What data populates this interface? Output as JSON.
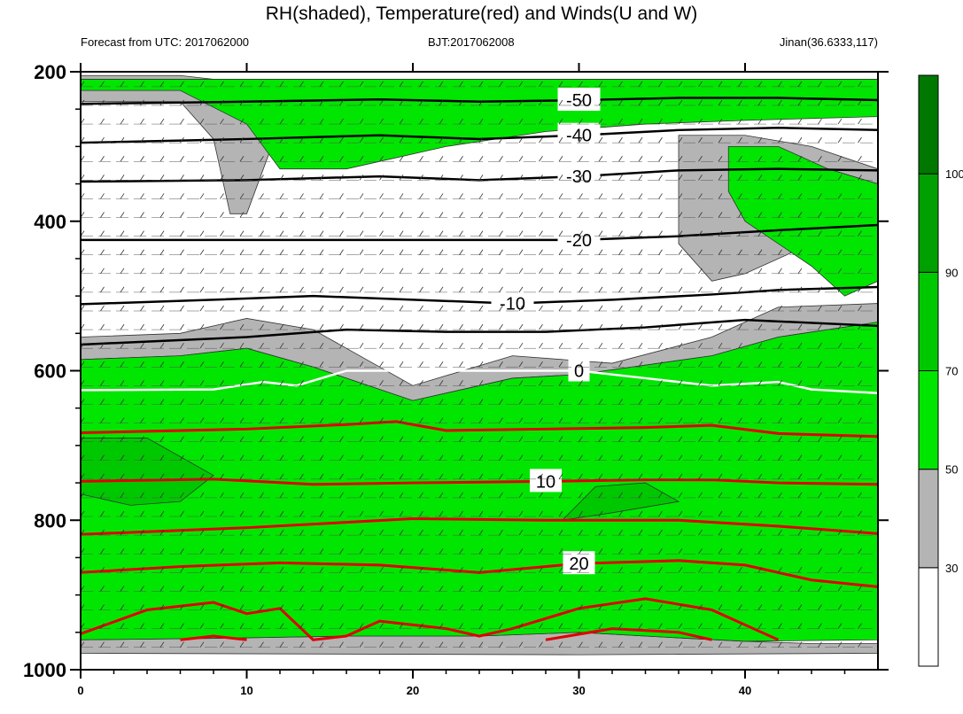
{
  "chart_data": {
    "type": "contour",
    "title": "RH(shaded), Temperature(red) and Winds(U and W)",
    "subtitle_left": "Forecast from UTC: 2017062000",
    "subtitle_center": "BJT:2017062008",
    "subtitle_right": "Jinan(36.6333,117)",
    "xlabel": "",
    "ylabel": "",
    "xlim": [
      0,
      48
    ],
    "ylim": [
      1000,
      200
    ],
    "x_ticks": [
      0,
      10,
      20,
      30,
      40
    ],
    "y_ticks": [
      200,
      400,
      600,
      800,
      1000
    ],
    "colorbar": {
      "levels": [
        30,
        50,
        70,
        90,
        100
      ],
      "colors": [
        "#ffffff",
        "#b4b4b4",
        "#00e600",
        "#00c800",
        "#00a000",
        "#007800"
      ]
    },
    "rh_regions": [
      {
        "name": "grey-lower",
        "level": 40,
        "points": [
          [
            0,
            975
          ],
          [
            0,
            960
          ],
          [
            8,
            958
          ],
          [
            16,
            955
          ],
          [
            24,
            955
          ],
          [
            30,
            950
          ],
          [
            34,
            955
          ],
          [
            40,
            962
          ],
          [
            44,
            965
          ],
          [
            48,
            965
          ],
          [
            48,
            978
          ],
          [
            30,
            980
          ],
          [
            0,
            978
          ]
        ]
      },
      {
        "name": "grey-upper",
        "level": 40,
        "points": [
          [
            0,
            555
          ],
          [
            6,
            550
          ],
          [
            10,
            530
          ],
          [
            14,
            545
          ],
          [
            20,
            620
          ],
          [
            26,
            580
          ],
          [
            32,
            590
          ],
          [
            38,
            555
          ],
          [
            42,
            515
          ],
          [
            48,
            510
          ],
          [
            48,
            535
          ],
          [
            42,
            555
          ],
          [
            38,
            580
          ],
          [
            30,
            605
          ],
          [
            26,
            610
          ],
          [
            20,
            640
          ],
          [
            14,
            595
          ],
          [
            10,
            570
          ],
          [
            6,
            580
          ],
          [
            0,
            585
          ]
        ]
      },
      {
        "name": "green-mid",
        "level": 60,
        "points": [
          [
            0,
            585
          ],
          [
            6,
            580
          ],
          [
            10,
            570
          ],
          [
            14,
            595
          ],
          [
            20,
            640
          ],
          [
            26,
            610
          ],
          [
            30,
            605
          ],
          [
            38,
            580
          ],
          [
            42,
            555
          ],
          [
            48,
            535
          ],
          [
            48,
            960
          ],
          [
            40,
            962
          ],
          [
            34,
            955
          ],
          [
            30,
            950
          ],
          [
            24,
            955
          ],
          [
            16,
            955
          ],
          [
            8,
            958
          ],
          [
            0,
            960
          ]
        ]
      },
      {
        "name": "green-dark-left",
        "level": 80,
        "points": [
          [
            0,
            690
          ],
          [
            4,
            690
          ],
          [
            8,
            740
          ],
          [
            6,
            775
          ],
          [
            3,
            780
          ],
          [
            0,
            765
          ]
        ]
      },
      {
        "name": "green-dark-mid",
        "level": 80,
        "points": [
          [
            29,
            800
          ],
          [
            31,
            755
          ],
          [
            34,
            750
          ],
          [
            36,
            775
          ],
          [
            32,
            790
          ]
        ]
      },
      {
        "name": "top-grey",
        "level": 40,
        "points": [
          [
            0,
            205
          ],
          [
            6,
            205
          ],
          [
            10,
            215
          ],
          [
            12,
            270
          ],
          [
            10,
            390
          ],
          [
            9,
            390
          ],
          [
            8,
            290
          ],
          [
            6,
            240
          ],
          [
            0,
            240
          ]
        ]
      },
      {
        "name": "top-green",
        "level": 60,
        "points": [
          [
            0,
            210
          ],
          [
            48,
            210
          ],
          [
            48,
            260
          ],
          [
            40,
            265
          ],
          [
            34,
            270
          ],
          [
            28,
            280
          ],
          [
            22,
            300
          ],
          [
            16,
            330
          ],
          [
            12,
            330
          ],
          [
            10,
            270
          ],
          [
            6,
            225
          ],
          [
            0,
            225
          ]
        ]
      },
      {
        "name": "upper-right-grey",
        "level": 40,
        "points": [
          [
            36,
            285
          ],
          [
            40,
            285
          ],
          [
            44,
            300
          ],
          [
            48,
            330
          ],
          [
            48,
            400
          ],
          [
            44,
            430
          ],
          [
            40,
            470
          ],
          [
            38,
            480
          ],
          [
            36,
            430
          ],
          [
            36,
            350
          ]
        ]
      },
      {
        "name": "upper-right-green",
        "level": 60,
        "points": [
          [
            39,
            300
          ],
          [
            42,
            300
          ],
          [
            45,
            330
          ],
          [
            48,
            350
          ],
          [
            48,
            480
          ],
          [
            46,
            500
          ],
          [
            44,
            460
          ],
          [
            42,
            430
          ],
          [
            40,
            400
          ],
          [
            39,
            360
          ]
        ]
      }
    ],
    "temperature_contours": [
      {
        "label": "0",
        "color": "white",
        "points": [
          [
            0,
            626
          ],
          [
            8,
            625
          ],
          [
            11,
            615
          ],
          [
            13,
            620
          ],
          [
            16,
            600
          ],
          [
            24,
            600
          ],
          [
            30,
            600
          ],
          [
            34,
            610
          ],
          [
            38,
            620
          ],
          [
            42,
            615
          ],
          [
            44,
            625
          ],
          [
            48,
            630
          ]
        ]
      },
      {
        "label": "",
        "color": "red",
        "points": [
          [
            0,
            683
          ],
          [
            10,
            678
          ],
          [
            16,
            672
          ],
          [
            19,
            668
          ],
          [
            22,
            680
          ],
          [
            28,
            678
          ],
          [
            34,
            676
          ],
          [
            38,
            673
          ],
          [
            42,
            684
          ],
          [
            48,
            688
          ]
        ]
      },
      {
        "label": "10",
        "color": "red",
        "points": [
          [
            0,
            748
          ],
          [
            8,
            745
          ],
          [
            14,
            752
          ],
          [
            20,
            750
          ],
          [
            28,
            748
          ],
          [
            34,
            746
          ],
          [
            38,
            746
          ],
          [
            42,
            750
          ],
          [
            48,
            752
          ]
        ]
      },
      {
        "label": "",
        "color": "red",
        "points": [
          [
            0,
            819
          ],
          [
            10,
            810
          ],
          [
            20,
            798
          ],
          [
            28,
            800
          ],
          [
            36,
            800
          ],
          [
            42,
            808
          ],
          [
            48,
            818
          ]
        ]
      },
      {
        "label": "20",
        "color": "red",
        "points": [
          [
            0,
            870
          ],
          [
            6,
            862
          ],
          [
            12,
            857
          ],
          [
            18,
            860
          ],
          [
            24,
            870
          ],
          [
            30,
            858
          ],
          [
            36,
            854
          ],
          [
            40,
            860
          ],
          [
            44,
            880
          ],
          [
            48,
            889
          ]
        ]
      },
      {
        "label": "",
        "color": "red",
        "points": [
          [
            0,
            952
          ],
          [
            4,
            920
          ],
          [
            8,
            910
          ],
          [
            10,
            925
          ],
          [
            12,
            918
          ],
          [
            14,
            960
          ],
          [
            16,
            955
          ],
          [
            18,
            935
          ],
          [
            22,
            945
          ],
          [
            24,
            955
          ],
          [
            26,
            945
          ],
          [
            30,
            918
          ],
          [
            34,
            905
          ],
          [
            38,
            920
          ],
          [
            41,
            950
          ],
          [
            42,
            960
          ]
        ]
      },
      {
        "label": "",
        "color": "red",
        "points": [
          [
            6,
            960
          ],
          [
            8,
            955
          ],
          [
            10,
            960
          ]
        ]
      },
      {
        "label": "",
        "color": "red",
        "points": [
          [
            28,
            960
          ],
          [
            32,
            945
          ],
          [
            36,
            950
          ],
          [
            38,
            960
          ]
        ]
      }
    ],
    "dark_contours": [
      {
        "label": "-50",
        "points": [
          [
            0,
            243
          ],
          [
            10,
            240
          ],
          [
            18,
            237
          ],
          [
            24,
            240
          ],
          [
            30,
            238
          ],
          [
            36,
            235
          ],
          [
            42,
            235
          ],
          [
            48,
            238
          ]
        ]
      },
      {
        "label": "-40",
        "points": [
          [
            0,
            295
          ],
          [
            10,
            290
          ],
          [
            18,
            285
          ],
          [
            24,
            290
          ],
          [
            30,
            285
          ],
          [
            36,
            278
          ],
          [
            42,
            275
          ],
          [
            48,
            278
          ]
        ]
      },
      {
        "label": "-30",
        "points": [
          [
            0,
            347
          ],
          [
            10,
            345
          ],
          [
            18,
            340
          ],
          [
            24,
            345
          ],
          [
            30,
            340
          ],
          [
            36,
            332
          ],
          [
            42,
            330
          ],
          [
            48,
            332
          ]
        ]
      },
      {
        "label": "-20",
        "points": [
          [
            0,
            425
          ],
          [
            10,
            425
          ],
          [
            18,
            425
          ],
          [
            24,
            425
          ],
          [
            30,
            425
          ],
          [
            36,
            420
          ],
          [
            42,
            412
          ],
          [
            48,
            405
          ]
        ]
      },
      {
        "label": "-10",
        "points": [
          [
            0,
            511
          ],
          [
            8,
            505
          ],
          [
            14,
            500
          ],
          [
            20,
            505
          ],
          [
            26,
            510
          ],
          [
            32,
            505
          ],
          [
            38,
            498
          ],
          [
            42,
            492
          ],
          [
            48,
            488
          ]
        ]
      },
      {
        "label": "",
        "points": [
          [
            0,
            565
          ],
          [
            10,
            555
          ],
          [
            16,
            545
          ],
          [
            22,
            548
          ],
          [
            28,
            548
          ],
          [
            34,
            542
          ],
          [
            40,
            532
          ],
          [
            48,
            540
          ]
        ]
      }
    ]
  }
}
